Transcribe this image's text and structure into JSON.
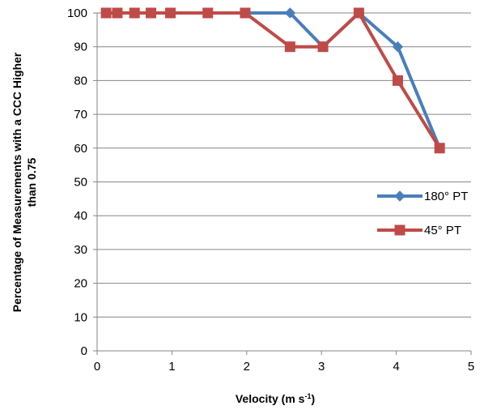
{
  "chart_data": {
    "type": "line",
    "xlabel": "Velocity (m s",
    "xlabel_superscript": "-1",
    "xlabel_suffix": ")",
    "ylabel_line1": "Percentage of Measurements with a CCC Higher",
    "ylabel_line2": "than 0.75",
    "xlim": [
      0,
      5
    ],
    "ylim": [
      0,
      100
    ],
    "x_ticks": [
      "0",
      "1",
      "2",
      "3",
      "4",
      "5"
    ],
    "y_ticks": [
      "0",
      "10",
      "20",
      "30",
      "40",
      "50",
      "60",
      "70",
      "80",
      "90",
      "100"
    ],
    "grid": "horizontal",
    "legend_position": "right",
    "series": [
      {
        "name": "180° PT",
        "color": "#4a7ebb",
        "marker": "diamond",
        "x": [
          0.12,
          0.27,
          0.5,
          0.72,
          0.98,
          1.48,
          1.98,
          2.58,
          3.02,
          3.5,
          4.02,
          4.58
        ],
        "y": [
          100,
          100,
          100,
          100,
          100,
          100,
          100,
          100,
          90,
          100,
          90,
          60
        ]
      },
      {
        "name": "45° PT",
        "color": "#be4b48",
        "marker": "square",
        "x": [
          0.12,
          0.27,
          0.5,
          0.72,
          0.98,
          1.48,
          1.98,
          2.58,
          3.02,
          3.5,
          4.02,
          4.58
        ],
        "y": [
          100,
          100,
          100,
          100,
          100,
          100,
          100,
          90,
          90,
          100,
          80,
          60
        ]
      }
    ]
  }
}
